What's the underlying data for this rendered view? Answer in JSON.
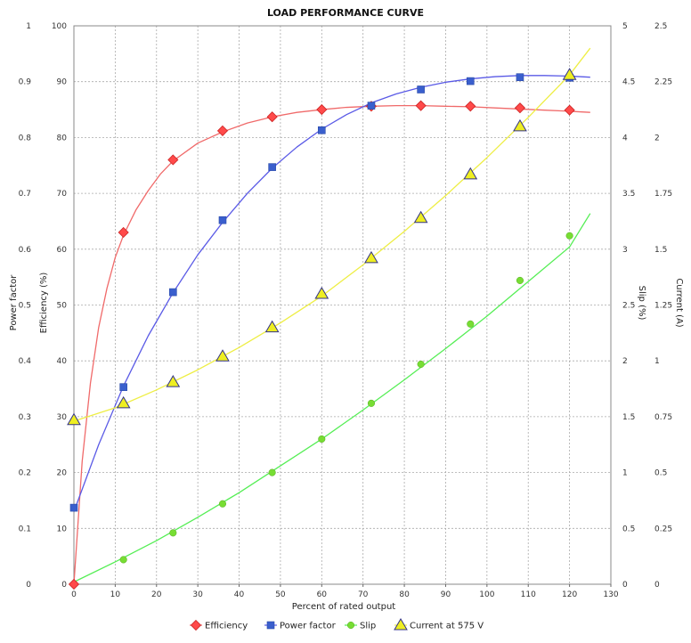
{
  "chart_data": {
    "type": "line",
    "title": "LOAD PERFORMANCE CURVE",
    "xlabel": "Percent of rated output",
    "xlim": [
      0,
      130
    ],
    "x_ticks": [
      "0",
      "10",
      "20",
      "30",
      "40",
      "50",
      "60",
      "70",
      "80",
      "90",
      "100",
      "110",
      "120",
      "130"
    ],
    "grid": true,
    "legend_position": "bottom-center",
    "axes": {
      "power_factor": {
        "label": "Power factor",
        "side": "left-outer",
        "lim": [
          0,
          1
        ],
        "ticks": [
          "0",
          "0.1",
          "0.2",
          "0.3",
          "0.4",
          "0.5",
          "0.6",
          "0.7",
          "0.8",
          "0.9",
          "1"
        ]
      },
      "efficiency": {
        "label": "Efficiency (%)",
        "side": "left-inner",
        "lim": [
          0,
          100
        ],
        "ticks": [
          "0",
          "10",
          "20",
          "30",
          "40",
          "50",
          "60",
          "70",
          "80",
          "90",
          "100"
        ]
      },
      "slip": {
        "label": "Slip (%)",
        "side": "right-inner",
        "lim": [
          0,
          5
        ],
        "ticks": [
          "0",
          "0.5",
          "1",
          "1.5",
          "2",
          "2.5",
          "3",
          "3.5",
          "4",
          "4.5",
          "5"
        ]
      },
      "current": {
        "label": "Current (A)",
        "side": "right-outer",
        "lim": [
          0,
          2.5
        ],
        "ticks": [
          "0",
          "0.25",
          "0.5",
          "0.75",
          "1",
          "1.25",
          "1.5",
          "1.75",
          "2",
          "2.25",
          "2.5"
        ]
      }
    },
    "series": [
      {
        "name": "Efficiency",
        "axis": "efficiency",
        "color": "#ff4a4a",
        "curve_color": "#f06a6a",
        "marker": "diamond",
        "points": [
          [
            0,
            0
          ],
          [
            12,
            63
          ],
          [
            24,
            76
          ],
          [
            36,
            81.2
          ],
          [
            48,
            83.7
          ],
          [
            60,
            85
          ],
          [
            72,
            85.6
          ],
          [
            84,
            85.7
          ],
          [
            96,
            85.6
          ],
          [
            108,
            85.3
          ],
          [
            120,
            84.9
          ]
        ],
        "curve": [
          [
            0,
            0
          ],
          [
            2,
            22
          ],
          [
            4,
            36
          ],
          [
            6,
            46
          ],
          [
            8,
            53
          ],
          [
            10,
            58.5
          ],
          [
            12,
            62.5
          ],
          [
            15,
            67
          ],
          [
            18,
            70.5
          ],
          [
            21,
            73.5
          ],
          [
            24,
            75.8
          ],
          [
            30,
            79
          ],
          [
            36,
            81
          ],
          [
            42,
            82.6
          ],
          [
            48,
            83.7
          ],
          [
            54,
            84.5
          ],
          [
            60,
            85
          ],
          [
            66,
            85.4
          ],
          [
            72,
            85.6
          ],
          [
            78,
            85.7
          ],
          [
            84,
            85.7
          ],
          [
            90,
            85.6
          ],
          [
            96,
            85.5
          ],
          [
            102,
            85.3
          ],
          [
            108,
            85.1
          ],
          [
            114,
            84.9
          ],
          [
            120,
            84.7
          ],
          [
            125,
            84.5
          ]
        ]
      },
      {
        "name": "Power factor",
        "axis": "power_factor",
        "color": "#3a5fcd",
        "curve_color": "#5a5ae6",
        "marker": "square",
        "points": [
          [
            0,
            0.137
          ],
          [
            12,
            0.353
          ],
          [
            24,
            0.523
          ],
          [
            36,
            0.652
          ],
          [
            48,
            0.747
          ],
          [
            60,
            0.813
          ],
          [
            72,
            0.857
          ],
          [
            84,
            0.886
          ],
          [
            96,
            0.901
          ],
          [
            108,
            0.908
          ],
          [
            120,
            0.907
          ]
        ],
        "curve": [
          [
            0,
            0.13
          ],
          [
            6,
            0.25
          ],
          [
            12,
            0.355
          ],
          [
            18,
            0.445
          ],
          [
            24,
            0.522
          ],
          [
            30,
            0.59
          ],
          [
            36,
            0.648
          ],
          [
            42,
            0.7
          ],
          [
            48,
            0.745
          ],
          [
            54,
            0.783
          ],
          [
            60,
            0.815
          ],
          [
            66,
            0.841
          ],
          [
            72,
            0.862
          ],
          [
            78,
            0.878
          ],
          [
            84,
            0.89
          ],
          [
            90,
            0.899
          ],
          [
            96,
            0.905
          ],
          [
            102,
            0.909
          ],
          [
            108,
            0.911
          ],
          [
            114,
            0.911
          ],
          [
            120,
            0.91
          ],
          [
            125,
            0.908
          ]
        ]
      },
      {
        "name": "Slip",
        "axis": "slip",
        "color": "#77dd33",
        "curve_color": "#55ee55",
        "marker": "circle",
        "points": [
          [
            12,
            0.22
          ],
          [
            24,
            0.46
          ],
          [
            36,
            0.72
          ],
          [
            48,
            1.0
          ],
          [
            60,
            1.3
          ],
          [
            72,
            1.62
          ],
          [
            84,
            1.97
          ],
          [
            96,
            2.33
          ],
          [
            108,
            2.72
          ],
          [
            120,
            3.12
          ]
        ],
        "curve": [
          [
            0,
            0.02
          ],
          [
            10,
            0.2
          ],
          [
            20,
            0.39
          ],
          [
            30,
            0.6
          ],
          [
            40,
            0.82
          ],
          [
            50,
            1.06
          ],
          [
            60,
            1.3
          ],
          [
            70,
            1.56
          ],
          [
            80,
            1.83
          ],
          [
            90,
            2.11
          ],
          [
            100,
            2.4
          ],
          [
            110,
            2.71
          ],
          [
            120,
            3.02
          ],
          [
            125,
            3.32
          ]
        ]
      },
      {
        "name": "Current at 575 V",
        "axis": "current",
        "color": "#eeee22",
        "curve_color": "#eeee44",
        "marker": "triangle",
        "points": [
          [
            0,
            0.735
          ],
          [
            12,
            0.81
          ],
          [
            24,
            0.905
          ],
          [
            36,
            1.02
          ],
          [
            48,
            1.15
          ],
          [
            60,
            1.3
          ],
          [
            72,
            1.46
          ],
          [
            84,
            1.64
          ],
          [
            96,
            1.835
          ],
          [
            108,
            2.05
          ],
          [
            120,
            2.28
          ]
        ],
        "curve": [
          [
            0,
            0.73
          ],
          [
            10,
            0.79
          ],
          [
            20,
            0.87
          ],
          [
            30,
            0.96
          ],
          [
            40,
            1.06
          ],
          [
            50,
            1.17
          ],
          [
            60,
            1.29
          ],
          [
            70,
            1.43
          ],
          [
            80,
            1.58
          ],
          [
            90,
            1.74
          ],
          [
            100,
            1.91
          ],
          [
            110,
            2.09
          ],
          [
            120,
            2.28
          ],
          [
            125,
            2.4
          ]
        ]
      }
    ]
  }
}
